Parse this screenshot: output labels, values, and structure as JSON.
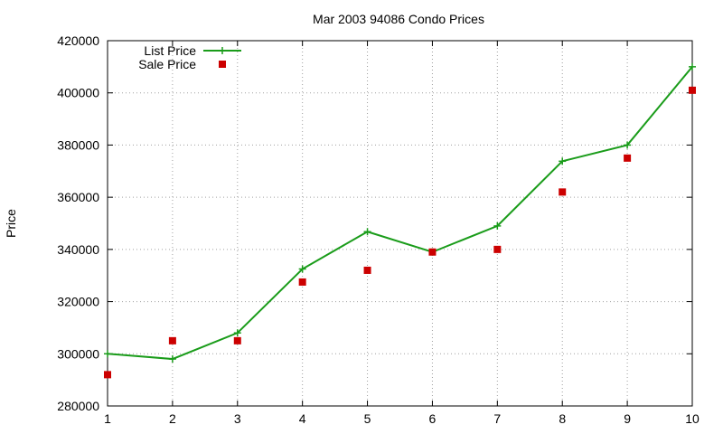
{
  "chart_data": {
    "type": "line",
    "title": "Mar 2003 94086 Condo Prices",
    "xlabel": "",
    "ylabel": "Price",
    "xlim": [
      1,
      10
    ],
    "ylim": [
      280000,
      420000
    ],
    "x_ticks": [
      "1",
      "2",
      "3",
      "4",
      "5",
      "6",
      "7",
      "8",
      "9",
      "10"
    ],
    "y_ticks": [
      "280000",
      "300000",
      "320000",
      "340000",
      "360000",
      "380000",
      "400000",
      "420000"
    ],
    "grid": true,
    "legend_position": "top-left",
    "x": [
      1,
      2,
      3,
      4,
      5,
      6,
      7,
      8,
      9,
      10
    ],
    "series": [
      {
        "name": "List Price",
        "style": "line-with-plus-markers",
        "color": "#1a9c1a",
        "values": [
          300000,
          298000,
          308000,
          332500,
          346800,
          339000,
          349000,
          373800,
          380000,
          410000
        ]
      },
      {
        "name": "Sale Price",
        "style": "square-markers",
        "color": "#cc0000",
        "values": [
          292000,
          305000,
          305000,
          327500,
          332000,
          339000,
          340000,
          362000,
          375000,
          401000
        ]
      }
    ]
  }
}
